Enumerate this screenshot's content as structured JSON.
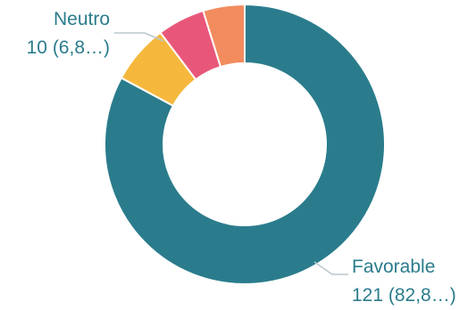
{
  "chart_data": {
    "type": "pie",
    "variant": "donut",
    "categories": [
      "Favorable",
      "Neutro",
      "",
      ""
    ],
    "values": [
      121,
      10,
      8,
      7
    ],
    "slices": [
      {
        "name": "Favorable",
        "value": 121,
        "color": "#2a7c8c",
        "label_line1": "Favorable",
        "label_line2": "121 (82,8…)"
      },
      {
        "name": "Neutro",
        "value": 10,
        "color": "#f5b83c",
        "label_line1": "Neutro",
        "label_line2": "10 (6,8…)"
      },
      {
        "name": "",
        "value": 8,
        "color": "#e8577a"
      },
      {
        "name": "",
        "value": 7,
        "color": "#f28c5e"
      }
    ],
    "title": "",
    "legend": "none",
    "label_color": "#2a7c8c",
    "leader_color": "#b8c7cc"
  }
}
